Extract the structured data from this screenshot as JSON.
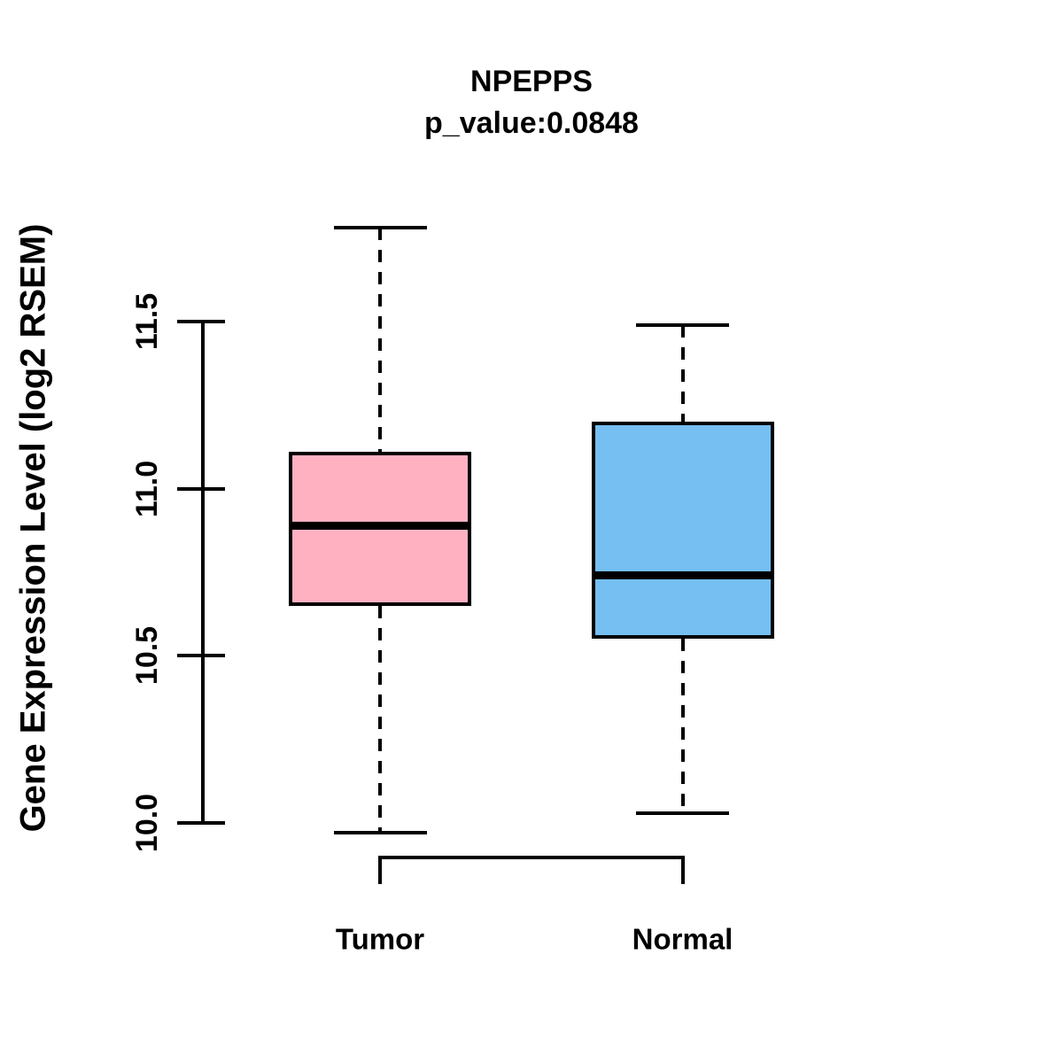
{
  "chart_data": {
    "type": "boxplot",
    "title": "NPEPPS",
    "subtitle": "p_value:0.0848",
    "ylabel": "Gene Expression Level (log2 RSEM)",
    "ylim": [
      10.0,
      11.5
    ],
    "y_ticks": [
      11.5,
      11.0,
      10.5,
      10.0
    ],
    "y_tick_labels": [
      "11.5",
      "11.0",
      "10.5",
      "10.0"
    ],
    "grid": false,
    "legend_position": "none",
    "categories": [
      "Tumor",
      "Normal"
    ],
    "groups": [
      {
        "label": "Tumor",
        "color": "#FFB1C2",
        "whisker_low": 9.97,
        "q1": 10.65,
        "median": 10.89,
        "q3": 11.11,
        "whisker_high": 11.78
      },
      {
        "label": "Normal",
        "color": "#75BFF3",
        "whisker_low": 10.03,
        "q1": 10.55,
        "median": 10.74,
        "q3": 11.2,
        "whisker_high": 11.49
      }
    ]
  },
  "colors": {
    "line": "#000000",
    "background": "#FFFFFF",
    "tumor_fill": "#FFB1C2",
    "normal_fill": "#75BFF3"
  }
}
